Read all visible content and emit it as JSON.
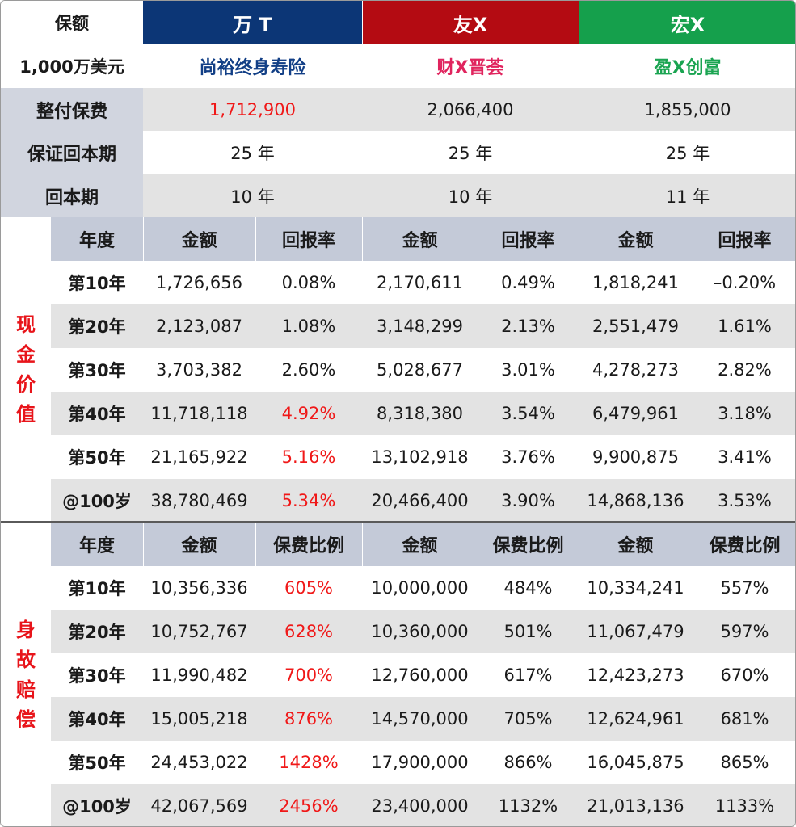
{
  "header": {
    "corner_label": "保额",
    "amount_label": "1,000万美元",
    "companies": [
      {
        "name": "万 T",
        "plan": "尚裕终身寿险",
        "color": "#0c3676",
        "plan_color": "#123f86"
      },
      {
        "name": "友X",
        "plan": "财X晋荟",
        "color": "#b40b12",
        "plan_color": "#e0245e"
      },
      {
        "name": "宏X",
        "plan": "盈X创富",
        "color": "#15a04c",
        "plan_color": "#1aa451"
      }
    ]
  },
  "summary": {
    "rows": [
      {
        "label": "整付保费",
        "values": [
          "1,712,900",
          "2,066,400",
          "1,855,000"
        ],
        "highlight_first": true
      },
      {
        "label": "保证回本期",
        "values": [
          "25 年",
          "25 年",
          "25 年"
        ]
      },
      {
        "label": "回本期",
        "values": [
          "10 年",
          "10 年",
          "11 年"
        ]
      }
    ]
  },
  "cash_value": {
    "section_label": [
      "现",
      "金",
      "价",
      "值"
    ],
    "columns": {
      "year": "年度",
      "amount": "金额",
      "rate": "回报率"
    },
    "rows": [
      {
        "year": "第10年",
        "cells": [
          "1,726,656",
          "0.08%",
          "2,170,611",
          "0.49%",
          "1,818,241",
          "–0.20%"
        ]
      },
      {
        "year": "第20年",
        "cells": [
          "2,123,087",
          "1.08%",
          "3,148,299",
          "2.13%",
          "2,551,479",
          "1.61%"
        ]
      },
      {
        "year": "第30年",
        "cells": [
          "3,703,382",
          "2.60%",
          "5,028,677",
          "3.01%",
          "4,278,273",
          "2.82%"
        ]
      },
      {
        "year": "第40年",
        "cells": [
          "11,718,118",
          "4.92%",
          "8,318,380",
          "3.54%",
          "6,479,961",
          "3.18%"
        ]
      },
      {
        "year": "第50年",
        "cells": [
          "21,165,922",
          "5.16%",
          "13,102,918",
          "3.76%",
          "9,900,875",
          "3.41%"
        ]
      },
      {
        "year": "@100岁",
        "cells": [
          "38,780,469",
          "5.34%",
          "20,466,400",
          "3.90%",
          "14,868,136",
          "3.53%"
        ]
      }
    ],
    "highlight_rows": [
      3,
      4,
      5
    ]
  },
  "death_benefit": {
    "section_label": [
      "身",
      "故",
      "赔",
      "偿"
    ],
    "columns": {
      "year": "年度",
      "amount": "金额",
      "rate": "保费比例"
    },
    "rows": [
      {
        "year": "第10年",
        "cells": [
          "10,356,336",
          "605%",
          "10,000,000",
          "484%",
          "10,334,241",
          "557%"
        ]
      },
      {
        "year": "第20年",
        "cells": [
          "10,752,767",
          "628%",
          "10,360,000",
          "501%",
          "11,067,479",
          "597%"
        ]
      },
      {
        "year": "第30年",
        "cells": [
          "11,990,482",
          "700%",
          "12,760,000",
          "617%",
          "12,423,273",
          "670%"
        ]
      },
      {
        "year": "第40年",
        "cells": [
          "15,005,218",
          "876%",
          "14,570,000",
          "705%",
          "12,624,961",
          "681%"
        ]
      },
      {
        "year": "第50年",
        "cells": [
          "24,453,022",
          "1428%",
          "17,900,000",
          "866%",
          "16,045,875",
          "865%"
        ]
      },
      {
        "year": "@100岁",
        "cells": [
          "42,067,569",
          "2456%",
          "23,400,000",
          "1132%",
          "21,013,136",
          "1133%"
        ]
      }
    ],
    "highlight_rows": [
      0,
      1,
      2,
      3,
      4,
      5
    ]
  },
  "colors": {
    "highlight": "#f01818",
    "section_label": "#e8141a"
  }
}
